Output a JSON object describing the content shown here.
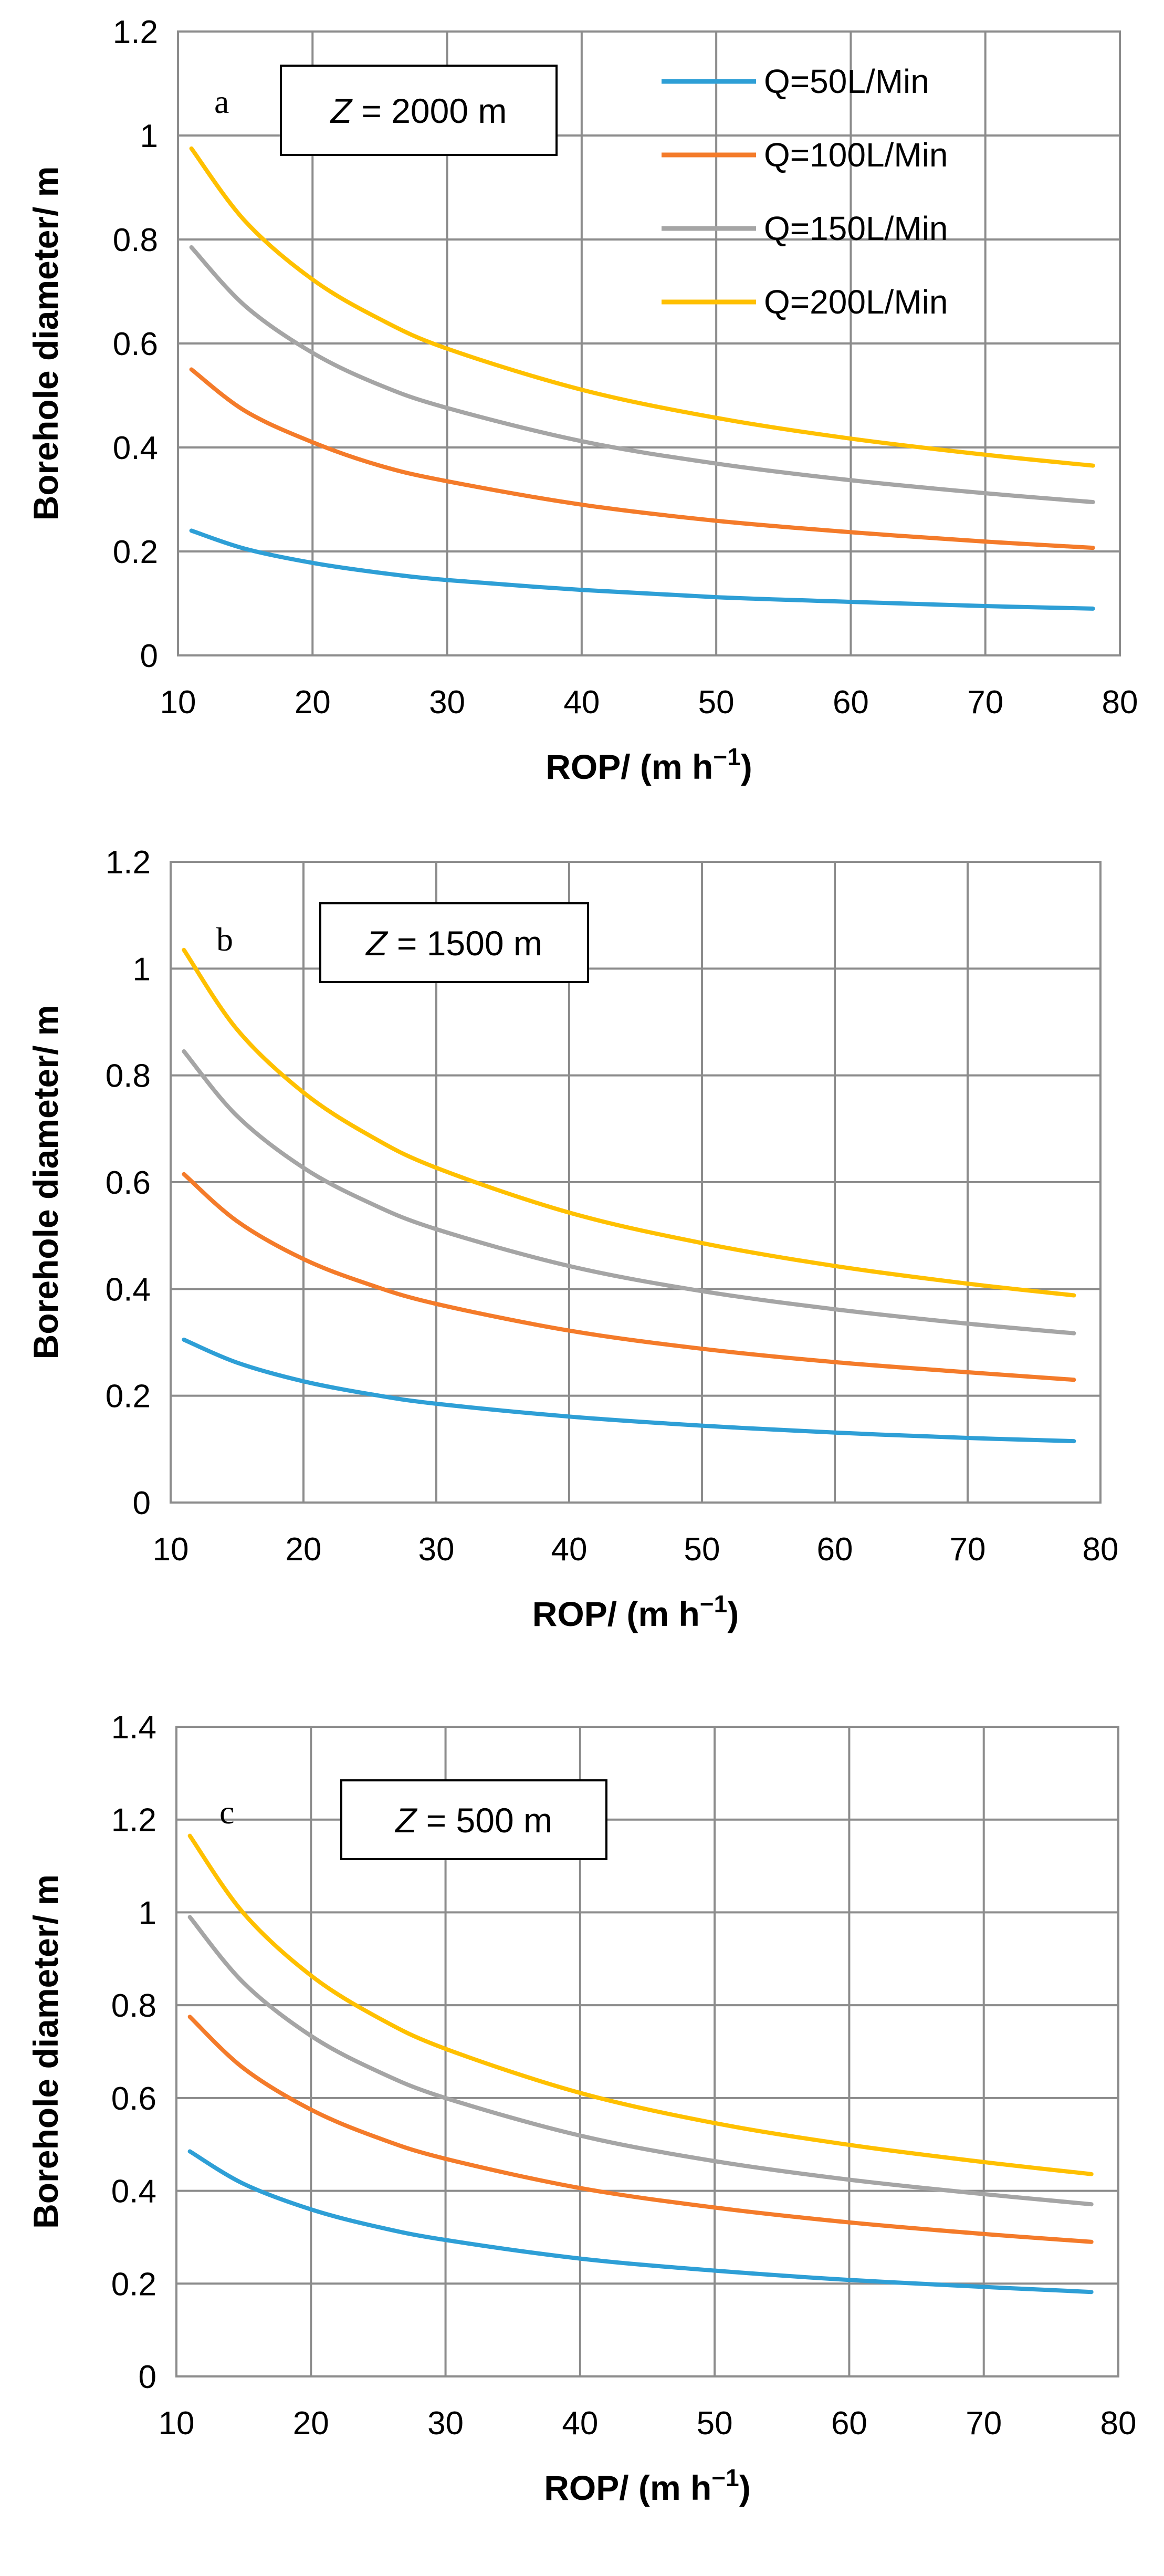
{
  "legend": {
    "items": [
      {
        "label": "Q=50L/Min",
        "color": "#2e9fd6"
      },
      {
        "label": "Q=100L/Min",
        "color": "#f47b2a"
      },
      {
        "label": "Q=150L/Min",
        "color": "#a5a5a5"
      },
      {
        "label": "Q=200L/Min",
        "color": "#ffc000"
      }
    ]
  },
  "chart_data": [
    {
      "type": "line",
      "panel": "a",
      "annotation": {
        "var": "Z",
        "text": " = 2000 m"
      },
      "xlabel": "ROP/ (m h",
      "xlabel_sup": "−1",
      "xlabel_end": ")",
      "ylabel": "Borehole diameter/ m",
      "xlim": [
        10,
        80
      ],
      "ylim": [
        0,
        1.2
      ],
      "xticks": [
        "10",
        "20",
        "30",
        "40",
        "50",
        "60",
        "70",
        "80"
      ],
      "yticks": [
        "0",
        "0.2",
        "0.4",
        "0.6",
        "0.8",
        "1",
        "1.2"
      ],
      "grid": true,
      "legend_position": "top-right",
      "x": [
        11,
        15,
        20,
        25,
        30,
        40,
        50,
        60,
        70,
        78
      ],
      "series": [
        {
          "name": "Q=50L/Min",
          "values": [
            0.24,
            0.205,
            0.178,
            0.159,
            0.145,
            0.126,
            0.112,
            0.103,
            0.095,
            0.09
          ]
        },
        {
          "name": "Q=100L/Min",
          "values": [
            0.55,
            0.47,
            0.41,
            0.365,
            0.335,
            0.29,
            0.259,
            0.237,
            0.219,
            0.207
          ]
        },
        {
          "name": "Q=150L/Min",
          "values": [
            0.785,
            0.672,
            0.582,
            0.52,
            0.476,
            0.412,
            0.369,
            0.337,
            0.312,
            0.295
          ]
        },
        {
          "name": "Q=200L/Min",
          "values": [
            0.975,
            0.835,
            0.723,
            0.647,
            0.59,
            0.511,
            0.457,
            0.417,
            0.386,
            0.365
          ]
        }
      ]
    },
    {
      "type": "line",
      "panel": "b",
      "annotation": {
        "var": "Z",
        "text": " = 1500 m"
      },
      "xlabel": "ROP/ (m h",
      "xlabel_sup": "−1",
      "xlabel_end": ")",
      "ylabel": "Borehole diameter/ m",
      "xlim": [
        10,
        80
      ],
      "ylim": [
        0,
        1.2
      ],
      "xticks": [
        "10",
        "20",
        "30",
        "40",
        "50",
        "60",
        "70",
        "80"
      ],
      "yticks": [
        "0",
        "0.2",
        "0.4",
        "0.6",
        "0.8",
        "1",
        "1.2"
      ],
      "grid": true,
      "x": [
        11,
        15,
        20,
        25,
        30,
        40,
        50,
        60,
        70,
        78
      ],
      "series": [
        {
          "name": "Q=50L/Min",
          "values": [
            0.305,
            0.262,
            0.227,
            0.203,
            0.185,
            0.161,
            0.144,
            0.131,
            0.121,
            0.115
          ]
        },
        {
          "name": "Q=100L/Min",
          "values": [
            0.615,
            0.527,
            0.456,
            0.408,
            0.372,
            0.322,
            0.288,
            0.263,
            0.244,
            0.23
          ]
        },
        {
          "name": "Q=150L/Min",
          "values": [
            0.845,
            0.724,
            0.627,
            0.561,
            0.512,
            0.443,
            0.396,
            0.362,
            0.335,
            0.317
          ]
        },
        {
          "name": "Q=200L/Min",
          "values": [
            1.035,
            0.886,
            0.768,
            0.687,
            0.627,
            0.543,
            0.486,
            0.443,
            0.41,
            0.388
          ]
        }
      ]
    },
    {
      "type": "line",
      "panel": "c",
      "annotation": {
        "var": "Z",
        "text": " = 500 m"
      },
      "xlabel": "ROP/ (m h",
      "xlabel_sup": "−1",
      "xlabel_end": ")",
      "ylabel": "Borehole diameter/ m",
      "xlim": [
        10,
        80
      ],
      "ylim": [
        0,
        1.4
      ],
      "xticks": [
        "10",
        "20",
        "30",
        "40",
        "50",
        "60",
        "70",
        "80"
      ],
      "yticks": [
        "0",
        "0.2",
        "0.4",
        "0.6",
        "0.8",
        "1",
        "1.2",
        "1.4"
      ],
      "grid": true,
      "x": [
        11,
        15,
        20,
        25,
        30,
        40,
        50,
        60,
        70,
        78
      ],
      "series": [
        {
          "name": "Q=50L/Min",
          "values": [
            0.485,
            0.415,
            0.36,
            0.322,
            0.294,
            0.254,
            0.228,
            0.208,
            0.193,
            0.182
          ]
        },
        {
          "name": "Q=100L/Min",
          "values": [
            0.775,
            0.664,
            0.575,
            0.514,
            0.469,
            0.406,
            0.364,
            0.332,
            0.307,
            0.29
          ]
        },
        {
          "name": "Q=150L/Min",
          "values": [
            0.99,
            0.848,
            0.734,
            0.657,
            0.6,
            0.519,
            0.464,
            0.424,
            0.393,
            0.371
          ]
        },
        {
          "name": "Q=200L/Min",
          "values": [
            1.165,
            0.998,
            0.864,
            0.773,
            0.706,
            0.611,
            0.546,
            0.499,
            0.462,
            0.436
          ]
        }
      ]
    }
  ]
}
